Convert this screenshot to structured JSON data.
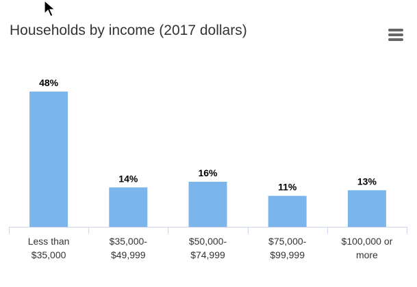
{
  "chart_data": {
    "type": "bar",
    "title": "Households by income (2017 dollars)",
    "categories": [
      [
        "Less than",
        "$35,000"
      ],
      [
        "$35,000-",
        "$49,999"
      ],
      [
        "$50,000-",
        "$74,999"
      ],
      [
        "$75,000-",
        "$99,999"
      ],
      [
        "$100,000 or",
        "more"
      ]
    ],
    "values": [
      48,
      14,
      16,
      11,
      13
    ],
    "data_labels": [
      "48%",
      "14%",
      "16%",
      "11%",
      "13%"
    ],
    "value_unit": "%",
    "ylim": [
      0,
      48
    ],
    "grid": false,
    "legend": false,
    "bar_color": "#7cb5ec"
  },
  "toolbar": {
    "menu_icon": "hamburger-menu-icon"
  }
}
